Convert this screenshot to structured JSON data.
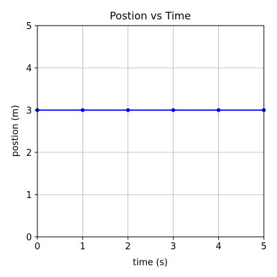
{
  "chart_data": {
    "type": "line",
    "title": "Postion vs Time",
    "xlabel": "time (s)",
    "ylabel": "postion (m)",
    "xlim": [
      0,
      5
    ],
    "ylim": [
      0,
      5
    ],
    "xticks": [
      0,
      1,
      2,
      3,
      4,
      5
    ],
    "yticks": [
      0,
      1,
      2,
      3,
      4,
      5
    ],
    "grid": true,
    "series": [
      {
        "x": [
          0,
          1,
          2,
          3,
          4,
          5
        ],
        "y": [
          3,
          3,
          3,
          3,
          3,
          3
        ],
        "color": "#0000ff",
        "marker": "circle"
      }
    ]
  }
}
